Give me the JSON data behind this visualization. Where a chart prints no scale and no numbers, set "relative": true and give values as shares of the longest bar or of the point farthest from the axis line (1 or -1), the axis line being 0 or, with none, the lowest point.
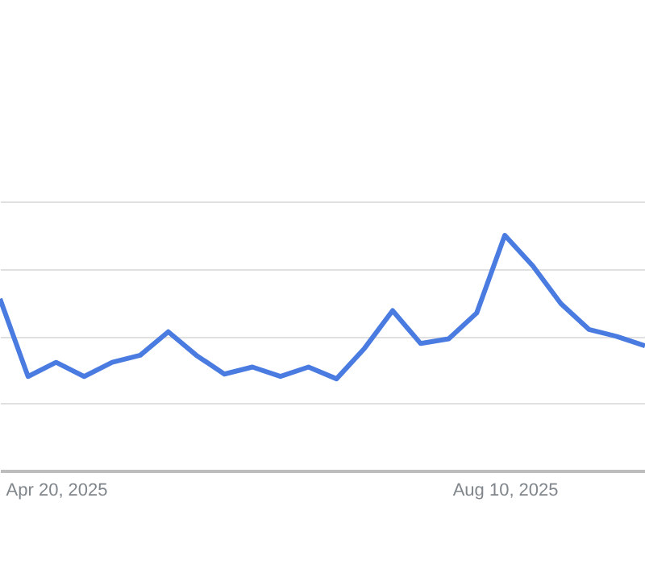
{
  "chart_data": {
    "type": "line",
    "relative": true,
    "grid": "y",
    "marker": "none",
    "line_style": "solid",
    "x": [
      "2025-04-06",
      "2025-04-13",
      "2025-04-20",
      "2025-04-27",
      "2025-05-04",
      "2025-05-11",
      "2025-05-18",
      "2025-05-25",
      "2025-06-01",
      "2025-06-08",
      "2025-06-15",
      "2025-06-22",
      "2025-06-29",
      "2025-07-06",
      "2025-07-13",
      "2025-07-20",
      "2025-07-27",
      "2025-08-03",
      "2025-08-10",
      "2025-08-17",
      "2025-08-24",
      "2025-08-31",
      "2025-09-07",
      "2025-09-14"
    ],
    "xlim": [
      "2025-04-06",
      "2025-09-14"
    ],
    "xticks": [
      {
        "value": "2025-04-20",
        "label": "Apr 20, 2025"
      },
      {
        "value": "2025-08-10",
        "label": "Aug 10, 2025"
      }
    ],
    "series": [
      {
        "color": "#4a7be0",
        "values": [
          0.73,
          0.4,
          0.46,
          0.4,
          0.46,
          0.49,
          0.59,
          0.49,
          0.41,
          0.44,
          0.4,
          0.44,
          0.39,
          0.52,
          0.68,
          0.54,
          0.56,
          0.67,
          1,
          0.87,
          0.71,
          0.6,
          0.57,
          0.53
        ]
      }
    ]
  }
}
